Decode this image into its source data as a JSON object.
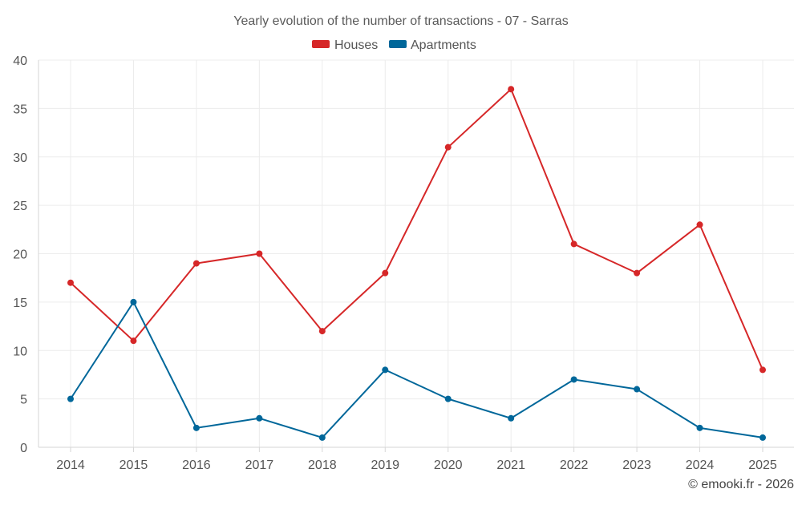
{
  "chart_data": {
    "type": "line",
    "title": "Yearly evolution of the number of transactions - 07 - Sarras",
    "categories": [
      "2014",
      "2015",
      "2016",
      "2017",
      "2018",
      "2019",
      "2020",
      "2021",
      "2022",
      "2023",
      "2024",
      "2025"
    ],
    "series": [
      {
        "name": "Houses",
        "color": "#d62728",
        "values": [
          17,
          11,
          19,
          20,
          12,
          18,
          31,
          37,
          21,
          18,
          23,
          8
        ]
      },
      {
        "name": "Apartments",
        "color": "#00679a",
        "values": [
          5,
          15,
          2,
          3,
          1,
          8,
          5,
          3,
          7,
          6,
          2,
          1
        ]
      }
    ],
    "ylim": [
      0,
      40
    ],
    "yticks": [
      0,
      5,
      10,
      15,
      20,
      25,
      30,
      35,
      40
    ],
    "grid": true,
    "legend": "top-center",
    "xlabel": "",
    "ylabel": ""
  },
  "credit": "© emooki.fr - 2026"
}
